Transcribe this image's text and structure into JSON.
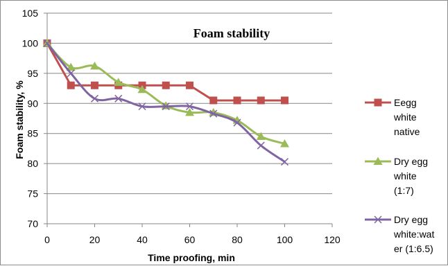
{
  "chart_data": {
    "type": "line",
    "title": "Foam stability",
    "xlabel": "Time proofing, min",
    "ylabel": "Foam stability, %",
    "xlim": [
      0,
      120
    ],
    "ylim": [
      70,
      105
    ],
    "xticks": [
      0,
      20,
      40,
      60,
      80,
      100,
      120
    ],
    "yticks": [
      70,
      75,
      80,
      85,
      90,
      95,
      100,
      105
    ],
    "grid": "horizontal",
    "legend_position": "right",
    "series": [
      {
        "name": "Eegg white native",
        "legend_lines": [
          "Eegg",
          "white",
          "native"
        ],
        "color": "#c0504d",
        "marker": "square",
        "smooth": false,
        "x": [
          0,
          10,
          20,
          30,
          40,
          50,
          60,
          70,
          80,
          90,
          100
        ],
        "y": [
          100,
          93,
          93,
          93,
          93,
          93,
          93,
          90.5,
          90.5,
          90.5,
          90.5
        ]
      },
      {
        "name": "Dry egg white (1:7)",
        "legend_lines": [
          "Dry egg",
          "white",
          "(1:7)"
        ],
        "color": "#9bbb59",
        "marker": "triangle",
        "smooth": true,
        "x": [
          0,
          10,
          20,
          30,
          40,
          50,
          60,
          70,
          80,
          90,
          100
        ],
        "y": [
          100,
          96,
          96.2,
          93.5,
          92.3,
          89.6,
          88.5,
          88.5,
          87.2,
          84.5,
          83.3
        ]
      },
      {
        "name": "Dry egg white:water (1:6.5)",
        "legend_lines": [
          "Dry egg",
          "white:wat",
          "er (1:6.5)"
        ],
        "color": "#8064a2",
        "marker": "x",
        "smooth": true,
        "x": [
          0,
          10,
          20,
          30,
          40,
          50,
          60,
          70,
          80,
          90,
          100
        ],
        "y": [
          100,
          95,
          90.8,
          90.8,
          89.5,
          89.5,
          89.5,
          88.3,
          86.8,
          83,
          80.3
        ]
      }
    ]
  }
}
